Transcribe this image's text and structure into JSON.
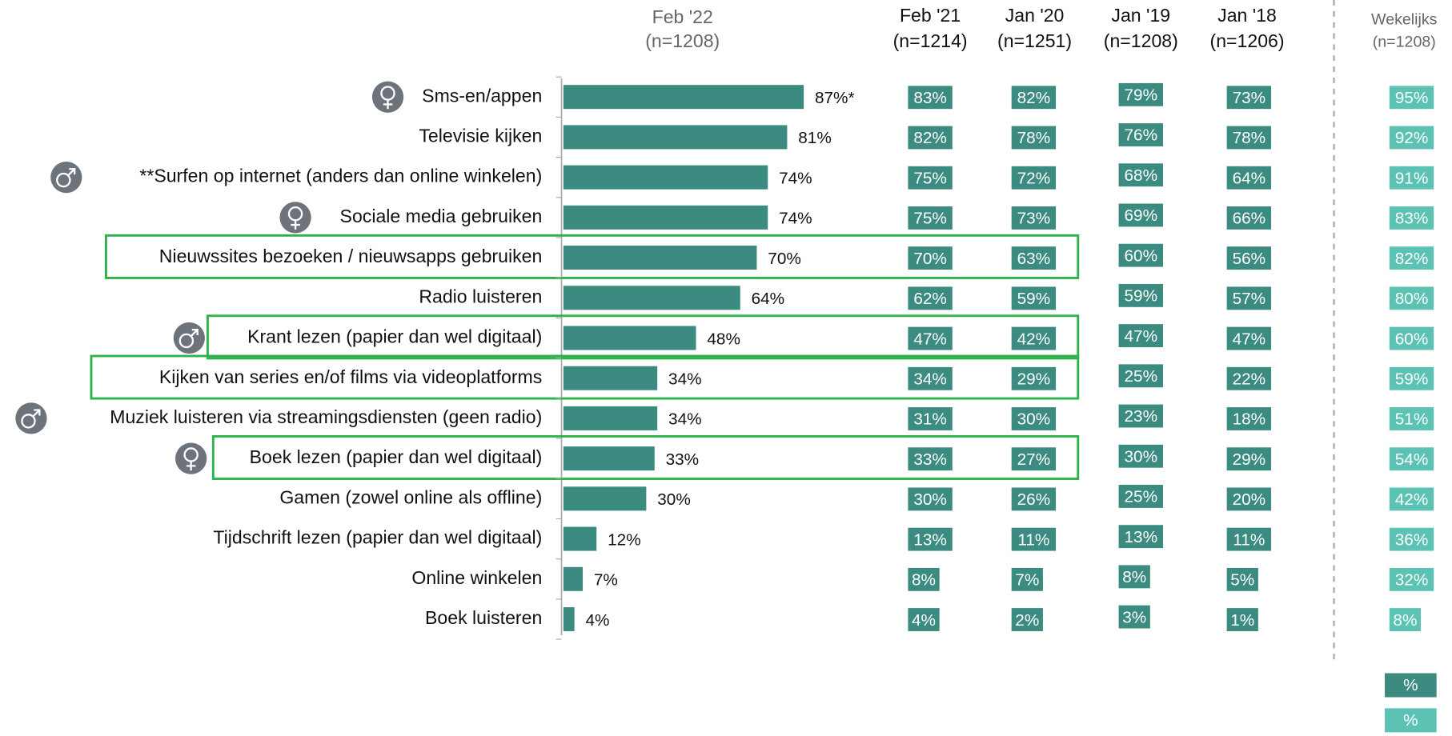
{
  "chart_data": {
    "type": "bar",
    "title": "Feb '22",
    "subtitle": "(n=1208)",
    "categories": [
      "Sms-en/appen",
      "Televisie kijken",
      "**Surfen op internet (anders dan online winkelen)",
      "Sociale media gebruiken",
      "Nieuwssites bezoeken / nieuwsapps gebruiken",
      "Radio luisteren",
      "Krant lezen (papier dan wel digitaal)",
      "Kijken van series en/of films via videoplatforms",
      "Muziek luisteren via streamingsdiensten (geen radio)",
      "Boek lezen (papier dan wel digitaal)",
      "Gamen (zowel online als offline)",
      "Tijdschrift lezen (papier dan wel digitaal)",
      "Online winkelen",
      "Boek luisteren"
    ],
    "values": [
      87,
      81,
      74,
      74,
      70,
      64,
      48,
      34,
      34,
      33,
      30,
      12,
      7,
      4
    ],
    "value_labels": [
      "87%*",
      "81%",
      "74%",
      "74%",
      "70%",
      "64%",
      "48%",
      "34%",
      "34%",
      "33%",
      "30%",
      "12%",
      "7%",
      "4%"
    ],
    "color": "#3b8b81",
    "xlim": [
      0,
      100
    ]
  },
  "columns": [
    {
      "title": "Feb '21",
      "subtitle": "(n=1214)",
      "color": "#3b8b81",
      "values": [
        83,
        82,
        75,
        75,
        70,
        62,
        47,
        34,
        31,
        33,
        30,
        13,
        8,
        4
      ],
      "value_labels": [
        "83%",
        "82%",
        "75%",
        "75%",
        "70%",
        "62%",
        "47%",
        "34%",
        "31%",
        "33%",
        "30%",
        "13%",
        "8%",
        "4%"
      ]
    },
    {
      "title": "Jan '20",
      "subtitle": "(n=1251)",
      "color": "#3b8b81",
      "values": [
        82,
        78,
        72,
        73,
        63,
        59,
        42,
        29,
        30,
        27,
        26,
        11,
        7,
        2
      ],
      "value_labels": [
        "82%",
        "78%",
        "72%",
        "73%",
        "63%",
        "59%",
        "42%",
        "29%",
        "30%",
        "27%",
        "26%",
        "11%",
        "7%",
        "2%"
      ]
    },
    {
      "title": "Jan '19",
      "subtitle": "(n=1208)",
      "color": "#3b8b81",
      "values": [
        79,
        76,
        68,
        69,
        60,
        59,
        47,
        25,
        23,
        30,
        25,
        13,
        8,
        3
      ],
      "value_labels": [
        "79%",
        "76%",
        "68%",
        "69%",
        "60%",
        "59%",
        "47%",
        "25%",
        "23%",
        "30%",
        "25%",
        "13%",
        "8%",
        "3%"
      ]
    },
    {
      "title": "Jan '18",
      "subtitle": "(n=1206)",
      "color": "#3b8b81",
      "values": [
        73,
        78,
        64,
        66,
        56,
        57,
        47,
        22,
        18,
        29,
        20,
        11,
        5,
        1
      ],
      "value_labels": [
        "73%",
        "78%",
        "64%",
        "66%",
        "56%",
        "57%",
        "47%",
        "22%",
        "18%",
        "29%",
        "20%",
        "11%",
        "5%",
        "1%"
      ]
    },
    {
      "title": "Wekelijks",
      "subtitle": "(n=1208)",
      "color": "#5cc2b4",
      "values": [
        95,
        92,
        91,
        83,
        82,
        80,
        60,
        59,
        51,
        54,
        42,
        36,
        32,
        8
      ],
      "value_labels": [
        "95%",
        "92%",
        "91%",
        "83%",
        "82%",
        "80%",
        "60%",
        "59%",
        "51%",
        "54%",
        "42%",
        "36%",
        "32%",
        "8%"
      ]
    }
  ],
  "legend": [
    {
      "label": "%",
      "color": "#3b8b81"
    },
    {
      "label": "%",
      "color": "#5cc2b4"
    }
  ]
}
